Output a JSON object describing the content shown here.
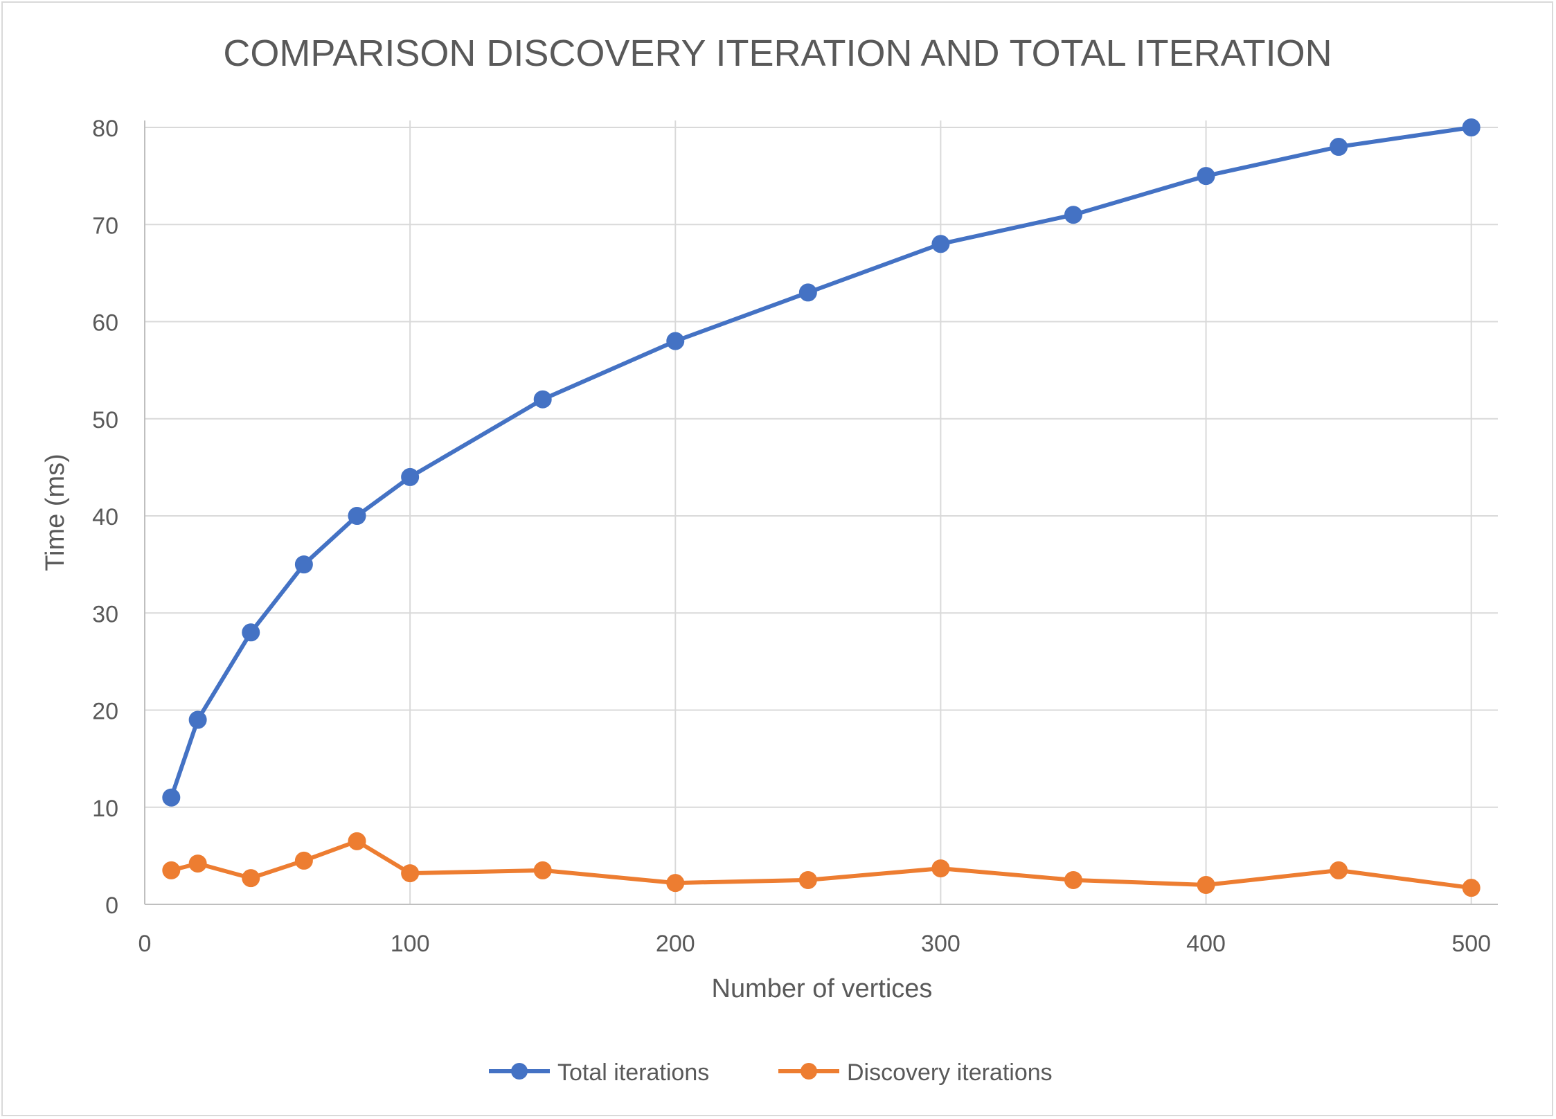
{
  "chart_data": {
    "type": "line",
    "title": "COMPARISON DISCOVERY ITERATION AND TOTAL ITERATION",
    "xlabel": "Number of vertices",
    "ylabel": "Time (ms)",
    "xlim": [
      0,
      510
    ],
    "ylim": [
      0,
      80
    ],
    "x_ticks": [
      0,
      100,
      200,
      300,
      400,
      500
    ],
    "y_ticks": [
      0,
      10,
      20,
      30,
      40,
      50,
      60,
      70,
      80
    ],
    "grid": true,
    "legend_position": "bottom",
    "x": [
      10,
      20,
      40,
      60,
      80,
      100,
      150,
      200,
      250,
      300,
      350,
      400,
      450,
      500
    ],
    "series": [
      {
        "name": "Total iterations",
        "color": "#4472c4",
        "values": [
          11,
          19,
          28,
          35,
          40,
          44,
          52,
          58,
          63,
          68,
          71,
          75,
          78,
          80
        ]
      },
      {
        "name": "Discovery iterations",
        "color": "#ed7d31",
        "values": [
          3.5,
          4.2,
          2.7,
          4.5,
          6.5,
          3.2,
          3.5,
          2.2,
          2.5,
          3.7,
          2.5,
          2.0,
          3.5,
          1.7
        ]
      }
    ]
  }
}
